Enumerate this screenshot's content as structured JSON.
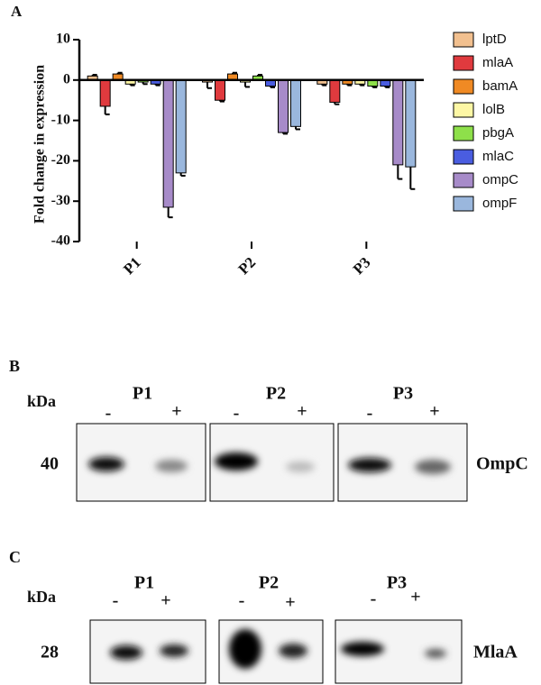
{
  "panel_a_label": "A",
  "chart_data": {
    "type": "bar",
    "y_label": "Fold change in expression",
    "categories": [
      "P1",
      "P2",
      "P3"
    ],
    "ylim": [
      -40,
      10
    ],
    "yticks": [
      -40,
      -30,
      -20,
      -10,
      0,
      10
    ],
    "series": [
      {
        "name": "lptD",
        "color": "#f2c08f",
        "values": [
          1,
          -0.5,
          -1
        ],
        "errors": [
          0.3,
          1.5,
          0.3
        ]
      },
      {
        "name": "mlaA",
        "color": "#e03a3e",
        "values": [
          -6.5,
          -5,
          -5.5
        ],
        "errors": [
          2,
          0.3,
          0.5
        ]
      },
      {
        "name": "bamA",
        "color": "#f08a24",
        "values": [
          1.5,
          1.5,
          -1
        ],
        "errors": [
          0.3,
          0.3,
          0.3
        ]
      },
      {
        "name": "lolB",
        "color": "#fdf7a5",
        "values": [
          -1,
          -0.5,
          -1
        ],
        "errors": [
          0.3,
          1.2,
          0.3
        ]
      },
      {
        "name": "pbgA",
        "color": "#8ee04a",
        "values": [
          -0.5,
          1,
          -1.5
        ],
        "errors": [
          0.5,
          0.3,
          0.3
        ]
      },
      {
        "name": "mlaC",
        "color": "#4a5de0",
        "values": [
          -1,
          -1.5,
          -1.5
        ],
        "errors": [
          0.3,
          0.3,
          0.3
        ]
      },
      {
        "name": "ompC",
        "color": "#a78bc9",
        "values": [
          -31.5,
          -13,
          -21
        ],
        "errors": [
          2.5,
          0.3,
          3.5
        ]
      },
      {
        "name": "ompF",
        "color": "#9ab7dd",
        "values": [
          -23,
          -11.5,
          -21.5
        ],
        "errors": [
          0.7,
          0.7,
          5.5
        ]
      }
    ]
  },
  "panel_b": {
    "label": "B",
    "unit": "kDa",
    "lanes": [
      "P1",
      "P2",
      "P3"
    ],
    "signs": [
      "-",
      "+"
    ],
    "marker": "40",
    "protein": "OmpC"
  },
  "panel_c": {
    "label": "C",
    "unit": "kDa",
    "lanes": [
      "P1",
      "P2",
      "P3"
    ],
    "signs": [
      "-",
      "+"
    ],
    "marker": "28",
    "protein": "MlaA"
  }
}
